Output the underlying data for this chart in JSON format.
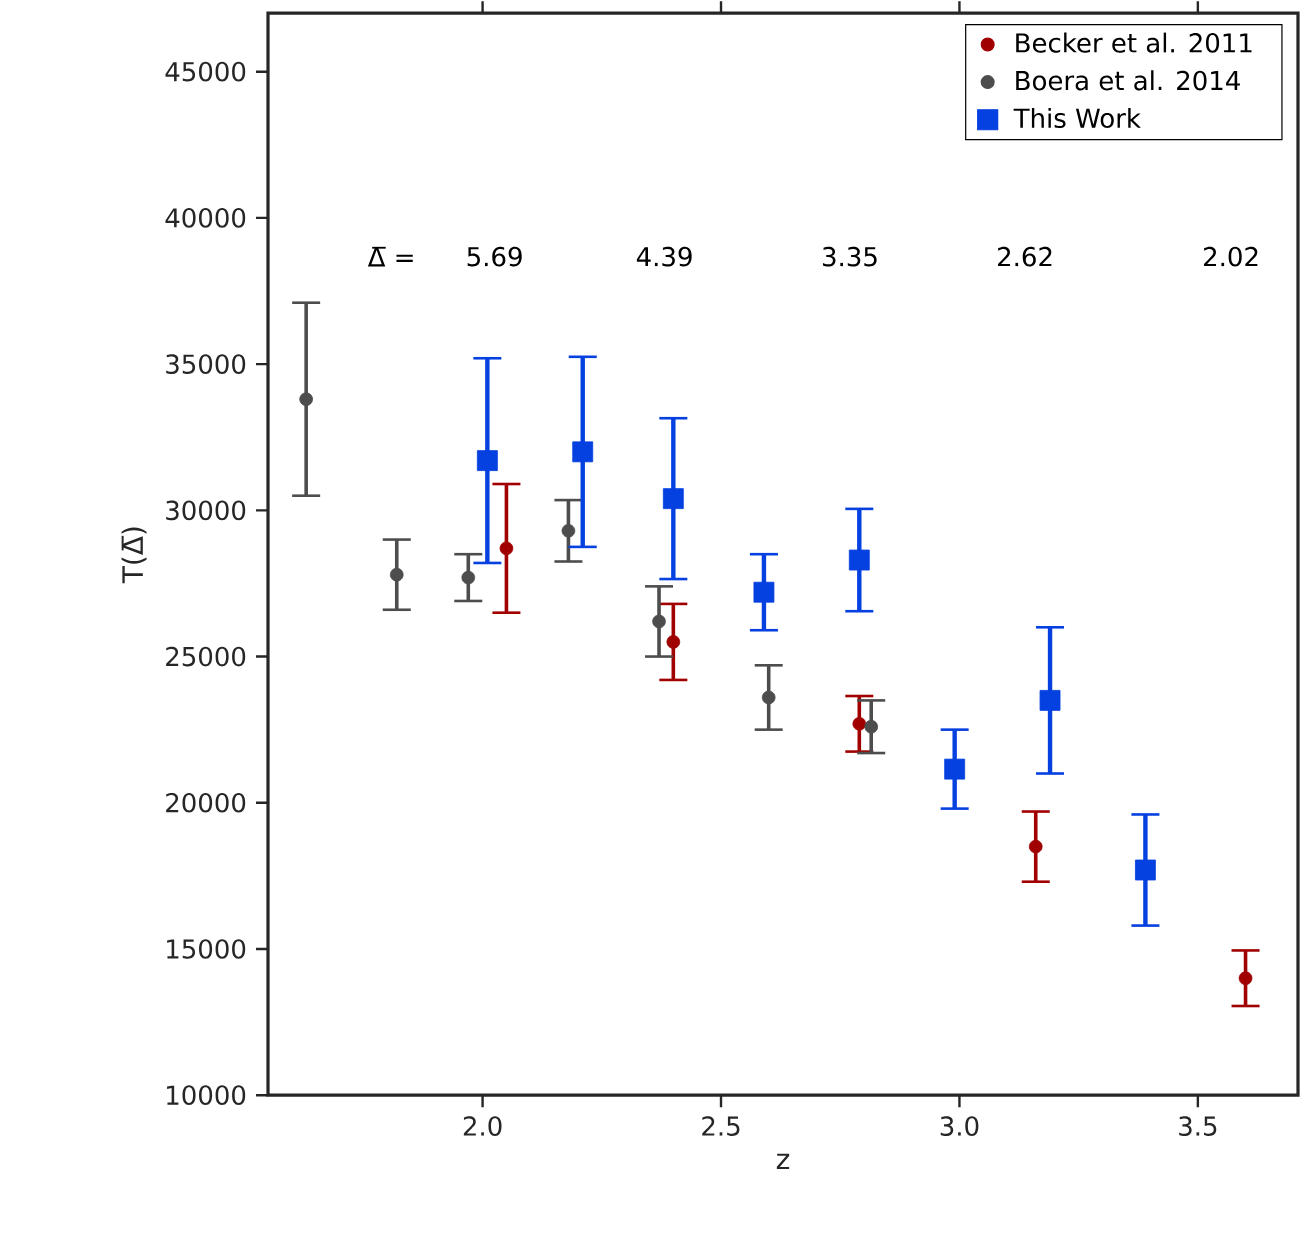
{
  "chart_data": {
    "type": "scatter",
    "xlabel": "z",
    "ylabel": "T(Δ̅)",
    "xlim": [
      1.55,
      3.71
    ],
    "ylim": [
      10000,
      47000
    ],
    "xticks": [
      {
        "value": 2.0,
        "label": "2.0"
      },
      {
        "value": 2.5,
        "label": "2.5"
      },
      {
        "value": 3.0,
        "label": "3.0"
      },
      {
        "value": 3.5,
        "label": "3.5"
      }
    ],
    "yticks": [
      10000,
      15000,
      20000,
      25000,
      30000,
      35000,
      40000,
      45000
    ],
    "legend": "top right",
    "series": [
      {
        "name": "Becker et al. 2011",
        "color": "#a00000",
        "marker": "circle",
        "x": [
          2.05,
          2.4,
          2.79,
          3.16,
          3.6
        ],
        "values": [
          28700,
          25500,
          22700,
          18500,
          14000
        ],
        "errors": [
          2200,
          1300,
          950,
          1200,
          950
        ]
      },
      {
        "name": "Boera et al. 2014",
        "color": "#4d4d4d",
        "marker": "circle",
        "x": [
          1.63,
          1.82,
          1.97,
          2.18,
          2.37,
          2.6,
          2.815
        ],
        "values": [
          33800,
          27800,
          27700,
          29300,
          26200,
          23600,
          22600
        ],
        "errors": [
          3300,
          1200,
          800,
          1050,
          1200,
          1100,
          900
        ]
      },
      {
        "name": "This Work",
        "color": "#0540e0",
        "marker": "square",
        "x": [
          2.01,
          2.21,
          2.4,
          2.59,
          2.79,
          2.99,
          3.19,
          3.39
        ],
        "values": [
          31700,
          32000,
          30400,
          27200,
          28300,
          21150,
          23500,
          17700
        ],
        "errors": [
          3500,
          3250,
          2750,
          1300,
          1750,
          1350,
          2500,
          1900
        ]
      }
    ],
    "annotations": [
      "Δ̅ =",
      "5.69",
      "4.39",
      "3.35",
      "2.62",
      "2.02"
    ]
  }
}
